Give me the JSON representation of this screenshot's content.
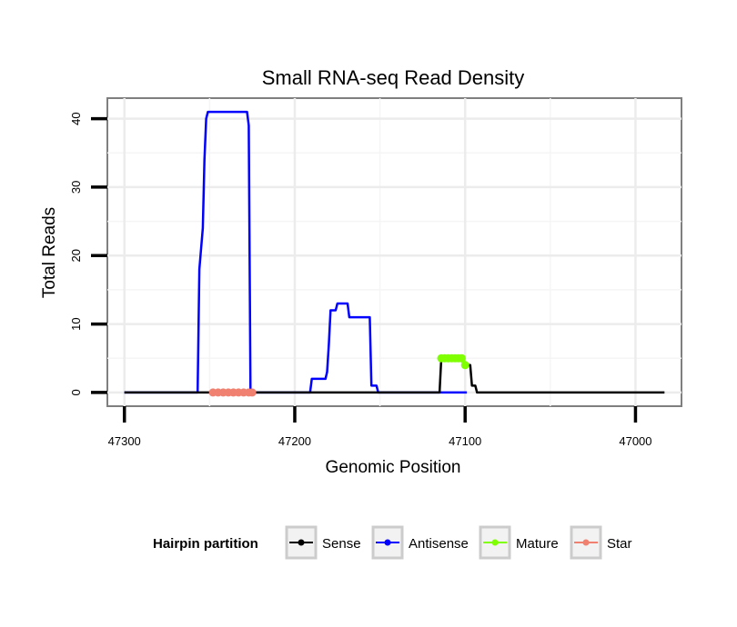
{
  "chart_data": {
    "type": "line",
    "title": "Small RNA-seq Read Density",
    "xlabel": "Genomic Position",
    "ylabel": "Total Reads",
    "xlim": [
      47310,
      46973
    ],
    "ylim": [
      -2,
      43
    ],
    "x_reversed": true,
    "grid": true,
    "x_ticks": [
      47300,
      47200,
      47100,
      47000
    ],
    "y_ticks": [
      0,
      10,
      20,
      30,
      40
    ],
    "x_tick_labels": [
      "47300",
      "47200",
      "47100",
      "47000"
    ],
    "y_tick_labels": [
      "0",
      "10",
      "20",
      "30",
      "40"
    ],
    "legend": {
      "title": "Hairpin partition",
      "position": "bottom",
      "entries": [
        {
          "name": "Sense",
          "color": "#000000"
        },
        {
          "name": "Antisense",
          "color": "#0000ff"
        },
        {
          "name": "Mature",
          "color": "#7fff00"
        },
        {
          "name": "Star",
          "color": "#f08070"
        }
      ]
    },
    "series": [
      {
        "name": "Sense",
        "color": "#000000",
        "style": "line",
        "points": [
          [
            47300,
            0
          ],
          [
            47115,
            0
          ],
          [
            47114,
            5
          ],
          [
            47101,
            5
          ],
          [
            47100,
            4
          ],
          [
            47097,
            4
          ],
          [
            47096,
            1
          ],
          [
            47094,
            1
          ],
          [
            47093,
            0
          ],
          [
            46983,
            0
          ]
        ]
      },
      {
        "name": "Antisense",
        "color": "#0000ff",
        "style": "line",
        "points": [
          [
            47300,
            0
          ],
          [
            47257,
            0
          ],
          [
            47256,
            18
          ],
          [
            47254,
            24
          ],
          [
            47253,
            34
          ],
          [
            47252,
            40
          ],
          [
            47251,
            41
          ],
          [
            47228,
            41
          ],
          [
            47227,
            39
          ],
          [
            47226,
            0
          ],
          [
            47191,
            0
          ],
          [
            47190,
            2
          ],
          [
            47182,
            2
          ],
          [
            47181,
            3
          ],
          [
            47180,
            7
          ],
          [
            47179,
            12
          ],
          [
            47176,
            12
          ],
          [
            47175,
            13
          ],
          [
            47169,
            13
          ],
          [
            47168,
            11
          ],
          [
            47156,
            11
          ],
          [
            47155,
            1
          ],
          [
            47152,
            1
          ],
          [
            47151,
            0
          ],
          [
            47100,
            0
          ],
          [
            47099,
            0
          ]
        ]
      },
      {
        "name": "Mature",
        "color": "#7fff00",
        "style": "dots",
        "points": [
          [
            47114,
            5
          ],
          [
            47112,
            5
          ],
          [
            47110,
            5
          ],
          [
            47108,
            5
          ],
          [
            47106,
            5
          ],
          [
            47104,
            5
          ],
          [
            47102,
            5
          ],
          [
            47100,
            4
          ]
        ]
      },
      {
        "name": "Star",
        "color": "#f08070",
        "style": "dots",
        "points": [
          [
            47248,
            0
          ],
          [
            47245,
            0
          ],
          [
            47242,
            0
          ],
          [
            47239,
            0
          ],
          [
            47236,
            0
          ],
          [
            47233,
            0
          ],
          [
            47230,
            0
          ],
          [
            47227,
            0
          ],
          [
            47225,
            0
          ]
        ]
      }
    ]
  }
}
